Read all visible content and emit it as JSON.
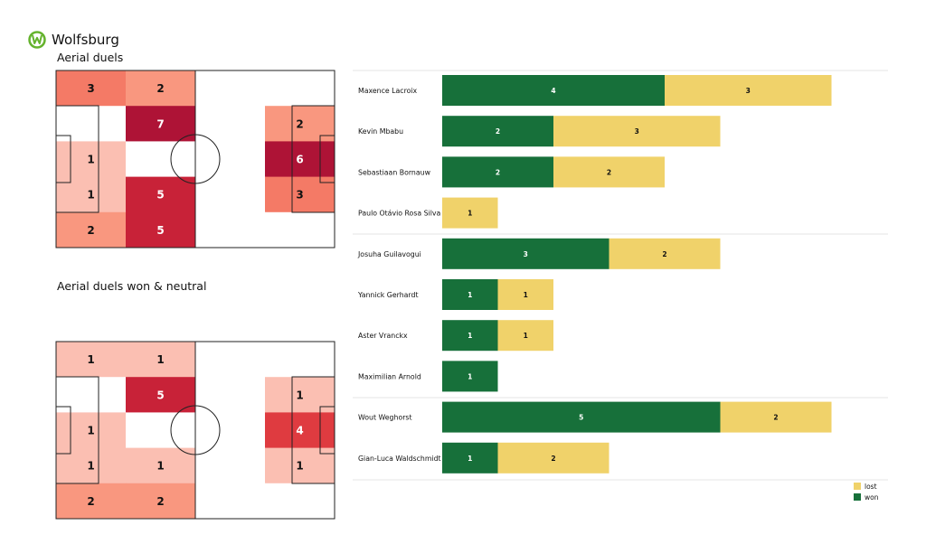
{
  "team": {
    "name": "Wolfsburg",
    "logo": "wolfsburg-crest-icon"
  },
  "colors": {
    "won": "#17703a",
    "lost": "#f0d26a",
    "heat": [
      "#ffffff",
      "#fbbfb2",
      "#f9977f",
      "#f47a66",
      "#df3b40",
      "#c82238",
      "#ae1336"
    ],
    "pitch_line": "#222222"
  },
  "chart_data": [
    {
      "type": "heatmap",
      "title": "Aerial duels",
      "rows": [
        [
          3,
          2,
          null,
          null
        ],
        [
          null,
          7,
          null,
          2
        ],
        [
          1,
          null,
          null,
          6
        ],
        [
          1,
          5,
          null,
          3
        ],
        [
          2,
          5,
          null,
          null
        ]
      ]
    },
    {
      "type": "heatmap",
      "title": "Aerial duels won & neutral",
      "rows": [
        [
          1,
          1,
          null,
          null
        ],
        [
          null,
          5,
          null,
          1
        ],
        [
          1,
          null,
          null,
          4
        ],
        [
          1,
          1,
          null,
          1
        ],
        [
          2,
          2,
          null,
          null
        ]
      ]
    },
    {
      "type": "bar",
      "orientation": "horizontal",
      "stacked": true,
      "categories": [
        "Maxence Lacroix",
        "Kevin Mbabu",
        "Sebastiaan Bornauw",
        "Paulo Otávio Rosa Silva",
        "Josuha Guilavogui",
        "Yannick Gerhardt",
        "Aster Vranckx",
        "Maximilian Arnold",
        "Wout Weghorst",
        "Gian-Luca Waldschmidt"
      ],
      "series": [
        {
          "name": "won",
          "values": [
            4,
            2,
            2,
            0,
            3,
            1,
            1,
            1,
            5,
            1
          ]
        },
        {
          "name": "lost",
          "values": [
            3,
            3,
            2,
            1,
            2,
            1,
            1,
            0,
            2,
            2
          ]
        }
      ],
      "groups": [
        [
          0,
          1,
          2,
          3
        ],
        [
          4,
          5,
          6,
          7
        ],
        [
          8,
          9
        ]
      ],
      "xlim": [
        0,
        8
      ],
      "legend": {
        "placement": "bottom-right",
        "order": [
          "lost",
          "won"
        ]
      }
    }
  ]
}
